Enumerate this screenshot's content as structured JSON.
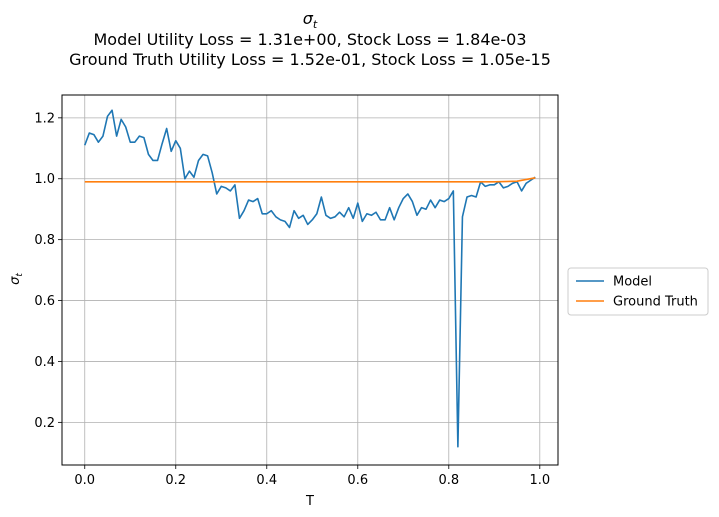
{
  "chart_data": {
    "type": "line",
    "title_symbol": "σ",
    "title_subscript": "t",
    "title_lines": [
      "Model Utility Loss = 1.31e+00, Stock Loss = 1.84e-03",
      "Ground Truth Utility Loss = 1.52e-01, Stock Loss = 1.05e-15"
    ],
    "xlabel": "T",
    "ylabel_symbol": "σ",
    "ylabel_subscript": "t",
    "xlim": [
      -0.05,
      1.04
    ],
    "ylim": [
      0.06,
      1.275
    ],
    "xticks": [
      0.0,
      0.2,
      0.4,
      0.6,
      0.8,
      1.0
    ],
    "xtick_labels": [
      "0.0",
      "0.2",
      "0.4",
      "0.6",
      "0.8",
      "1.0"
    ],
    "yticks": [
      0.2,
      0.4,
      0.6,
      0.8,
      1.0,
      1.2
    ],
    "ytick_labels": [
      "0.2",
      "0.4",
      "0.6",
      "0.8",
      "1.0",
      "1.2"
    ],
    "grid": true,
    "legend_position": "outside-right",
    "series": [
      {
        "name": "Model",
        "color": "#1f77b4",
        "x": [
          0.0,
          0.01,
          0.02,
          0.03,
          0.04,
          0.05,
          0.06,
          0.07,
          0.08,
          0.09,
          0.1,
          0.11,
          0.12,
          0.13,
          0.14,
          0.15,
          0.16,
          0.17,
          0.18,
          0.19,
          0.2,
          0.21,
          0.22,
          0.23,
          0.24,
          0.25,
          0.26,
          0.27,
          0.28,
          0.29,
          0.3,
          0.31,
          0.32,
          0.33,
          0.34,
          0.35,
          0.36,
          0.37,
          0.38,
          0.39,
          0.4,
          0.41,
          0.42,
          0.43,
          0.44,
          0.45,
          0.46,
          0.47,
          0.48,
          0.49,
          0.5,
          0.51,
          0.52,
          0.53,
          0.54,
          0.55,
          0.56,
          0.57,
          0.58,
          0.59,
          0.6,
          0.61,
          0.62,
          0.63,
          0.64,
          0.65,
          0.66,
          0.67,
          0.68,
          0.69,
          0.7,
          0.71,
          0.72,
          0.73,
          0.74,
          0.75,
          0.76,
          0.77,
          0.78,
          0.79,
          0.8,
          0.81,
          0.82,
          0.83,
          0.84,
          0.85,
          0.86,
          0.87,
          0.88,
          0.89,
          0.9,
          0.91,
          0.92,
          0.93,
          0.94,
          0.95,
          0.96,
          0.97,
          0.98,
          0.99
        ],
        "y": [
          1.11,
          1.15,
          1.145,
          1.12,
          1.14,
          1.205,
          1.225,
          1.14,
          1.195,
          1.17,
          1.12,
          1.12,
          1.14,
          1.135,
          1.08,
          1.06,
          1.06,
          1.115,
          1.165,
          1.09,
          1.125,
          1.1,
          1.0,
          1.025,
          1.005,
          1.06,
          1.08,
          1.075,
          1.02,
          0.95,
          0.975,
          0.97,
          0.96,
          0.98,
          0.87,
          0.895,
          0.93,
          0.925,
          0.935,
          0.885,
          0.885,
          0.895,
          0.875,
          0.865,
          0.86,
          0.84,
          0.895,
          0.87,
          0.88,
          0.85,
          0.865,
          0.885,
          0.94,
          0.88,
          0.87,
          0.875,
          0.89,
          0.875,
          0.905,
          0.87,
          0.92,
          0.86,
          0.885,
          0.88,
          0.89,
          0.865,
          0.865,
          0.905,
          0.865,
          0.905,
          0.935,
          0.95,
          0.925,
          0.88,
          0.905,
          0.9,
          0.93,
          0.905,
          0.93,
          0.925,
          0.935,
          0.96,
          0.12,
          0.875,
          0.94,
          0.945,
          0.94,
          0.99,
          0.975,
          0.98,
          0.98,
          0.99,
          0.97,
          0.975,
          0.985,
          0.99,
          0.96,
          0.985,
          0.995,
          1.005
        ]
      },
      {
        "name": "Ground Truth",
        "color": "#ff7f0e",
        "x": [
          0.0,
          0.1,
          0.2,
          0.3,
          0.4,
          0.5,
          0.6,
          0.7,
          0.8,
          0.9,
          0.95,
          0.99
        ],
        "y": [
          0.99,
          0.99,
          0.99,
          0.99,
          0.99,
          0.99,
          0.99,
          0.99,
          0.99,
          0.99,
          0.992,
          1.003
        ]
      }
    ],
    "colors": {
      "axes": "#000000",
      "grid": "#b0b0b0",
      "legend_border": "#cccccc"
    }
  }
}
